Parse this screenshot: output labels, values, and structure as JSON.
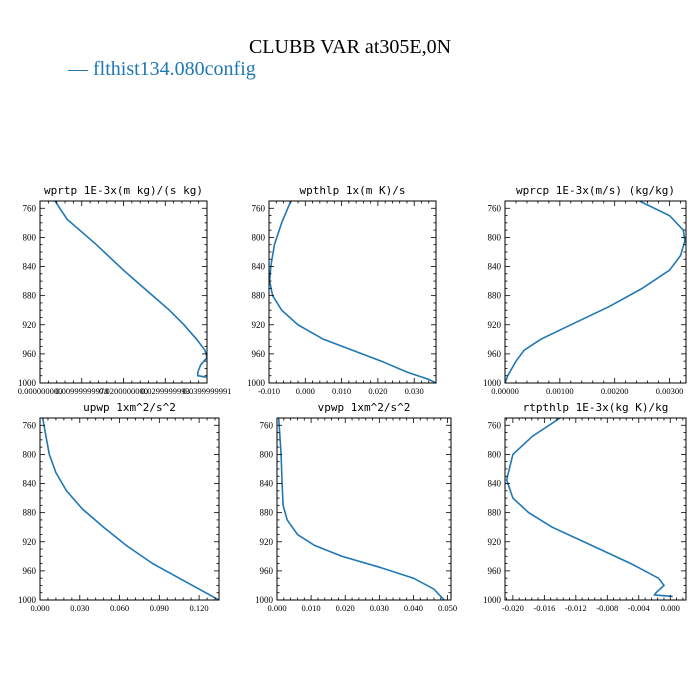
{
  "title": "CLUBB VAR at305E,0N",
  "legend": {
    "label": "flthist134.080config",
    "color": "#1f77b4"
  },
  "chart_data": [
    {
      "type": "line",
      "title": "wprtp  1E-3x(m kg)/(s kg)",
      "xlim": [
        0.0,
        0.04
      ],
      "ylim": [
        1000,
        750
      ],
      "y_inverted": true,
      "xticks": [
        0.0,
        0.01,
        0.02,
        0.03,
        0.04
      ],
      "xtick_labels": [
        "0.000000000",
        "0.00999999978",
        "0.0200000000",
        "0.0299999993",
        "0.0399999991"
      ],
      "yticks": [
        760,
        800,
        840,
        880,
        920,
        960,
        1000
      ],
      "series": [
        {
          "name": "flthist134.080config",
          "color": "#1f77b4",
          "x": [
            0.0036,
            0.0065,
            0.0135,
            0.02,
            0.026,
            0.031,
            0.0345,
            0.0375,
            0.0395,
            0.04,
            0.0385,
            0.0378,
            0.0378,
            0.0398
          ],
          "y": [
            750,
            775,
            810,
            845,
            875,
            900,
            920,
            940,
            955,
            965,
            975,
            985,
            990,
            992
          ]
        }
      ]
    },
    {
      "type": "line",
      "title": "wpthlp  1x(m K)/s",
      "xlim": [
        -0.01,
        0.036
      ],
      "ylim": [
        1000,
        750
      ],
      "y_inverted": true,
      "xticks": [
        -0.01,
        0.0,
        0.01,
        0.02,
        0.03
      ],
      "xtick_labels": [
        "-0.010",
        "0.000",
        "0.010",
        "0.020",
        "0.030"
      ],
      "yticks": [
        760,
        800,
        840,
        880,
        920,
        960,
        1000
      ],
      "series": [
        {
          "name": "flthist134.080config",
          "color": "#1f77b4",
          "x": [
            -0.004,
            -0.0065,
            -0.0085,
            -0.0095,
            -0.0098,
            -0.009,
            -0.0065,
            -0.002,
            0.005,
            0.013,
            0.021,
            0.028,
            0.034,
            0.036
          ],
          "y": [
            750,
            780,
            810,
            840,
            860,
            880,
            900,
            920,
            940,
            955,
            970,
            985,
            995,
            1000
          ]
        }
      ]
    },
    {
      "type": "line",
      "title": "wprcp  1E-3x(m/s) (kg/kg)",
      "xlim": [
        0.0,
        0.0033
      ],
      "ylim": [
        1000,
        750
      ],
      "y_inverted": true,
      "xticks": [
        0.0,
        0.001,
        0.002,
        0.003
      ],
      "xtick_labels": [
        "0.00000",
        "0.00100",
        "0.00200",
        "0.00300"
      ],
      "yticks": [
        760,
        800,
        840,
        880,
        920,
        960,
        1000
      ],
      "series": [
        {
          "name": "flthist134.080config",
          "color": "#1f77b4",
          "x": [
            0.00245,
            0.003,
            0.00325,
            0.00328,
            0.0032,
            0.003,
            0.0025,
            0.0019,
            0.0012,
            0.00065,
            0.00035,
            0.0002,
            5e-05,
            0.0
          ],
          "y": [
            750,
            770,
            790,
            805,
            825,
            845,
            870,
            895,
            920,
            940,
            955,
            970,
            990,
            1000
          ]
        }
      ]
    },
    {
      "type": "line",
      "title": "upwp  1xm^2/s^2",
      "xlim": [
        0.0,
        0.135
      ],
      "ylim": [
        1000,
        750
      ],
      "y_inverted": true,
      "xticks": [
        0.0,
        0.03,
        0.06,
        0.09,
        0.12
      ],
      "xtick_labels": [
        "0.000",
        "0.030",
        "0.060",
        "0.090",
        "0.120"
      ],
      "yticks": [
        760,
        800,
        840,
        880,
        920,
        960,
        1000
      ],
      "series": [
        {
          "name": "flthist134.080config",
          "color": "#1f77b4",
          "x": [
            0.002,
            0.004,
            0.007,
            0.012,
            0.02,
            0.032,
            0.048,
            0.065,
            0.085,
            0.105,
            0.125,
            0.135
          ],
          "y": [
            750,
            770,
            800,
            825,
            850,
            875,
            900,
            925,
            950,
            970,
            990,
            1000
          ]
        }
      ]
    },
    {
      "type": "line",
      "title": "vpwp  1xm^2/s^2",
      "xlim": [
        0.0,
        0.051
      ],
      "ylim": [
        1000,
        750
      ],
      "y_inverted": true,
      "xticks": [
        0.0,
        0.01,
        0.02,
        0.03,
        0.04,
        0.05
      ],
      "xtick_labels": [
        "0.000",
        "0.010",
        "0.020",
        "0.030",
        "0.040",
        "0.050"
      ],
      "yticks": [
        760,
        800,
        840,
        880,
        920,
        960,
        1000
      ],
      "series": [
        {
          "name": "flthist134.080config",
          "color": "#1f77b4",
          "x": [
            0.0005,
            0.0012,
            0.0015,
            0.0018,
            0.003,
            0.006,
            0.011,
            0.019,
            0.03,
            0.04,
            0.046,
            0.049
          ],
          "y": [
            750,
            800,
            840,
            870,
            890,
            910,
            925,
            940,
            955,
            970,
            985,
            1000
          ]
        }
      ]
    },
    {
      "type": "line",
      "title": "rtpthlp  1E-3x(kg K)/kg",
      "xlim": [
        -0.021,
        0.002
      ],
      "ylim": [
        1000,
        750
      ],
      "y_inverted": true,
      "xticks": [
        -0.02,
        -0.016,
        -0.012,
        -0.008,
        -0.004,
        0.0
      ],
      "xtick_labels": [
        "-0.020",
        "-0.016",
        "-0.012",
        "-0.008",
        "-0.004",
        "0.000"
      ],
      "yticks": [
        760,
        800,
        840,
        880,
        920,
        960,
        1000
      ],
      "series": [
        {
          "name": "flthist134.080config",
          "color": "#1f77b4",
          "x": [
            -0.014,
            -0.0175,
            -0.02,
            -0.0208,
            -0.02,
            -0.018,
            -0.015,
            -0.01,
            -0.005,
            -0.0015,
            -0.0008,
            -0.0018,
            -0.002,
            0.0003
          ],
          "y": [
            750,
            775,
            800,
            835,
            860,
            880,
            900,
            925,
            950,
            970,
            980,
            990,
            993,
            995
          ]
        }
      ]
    }
  ]
}
